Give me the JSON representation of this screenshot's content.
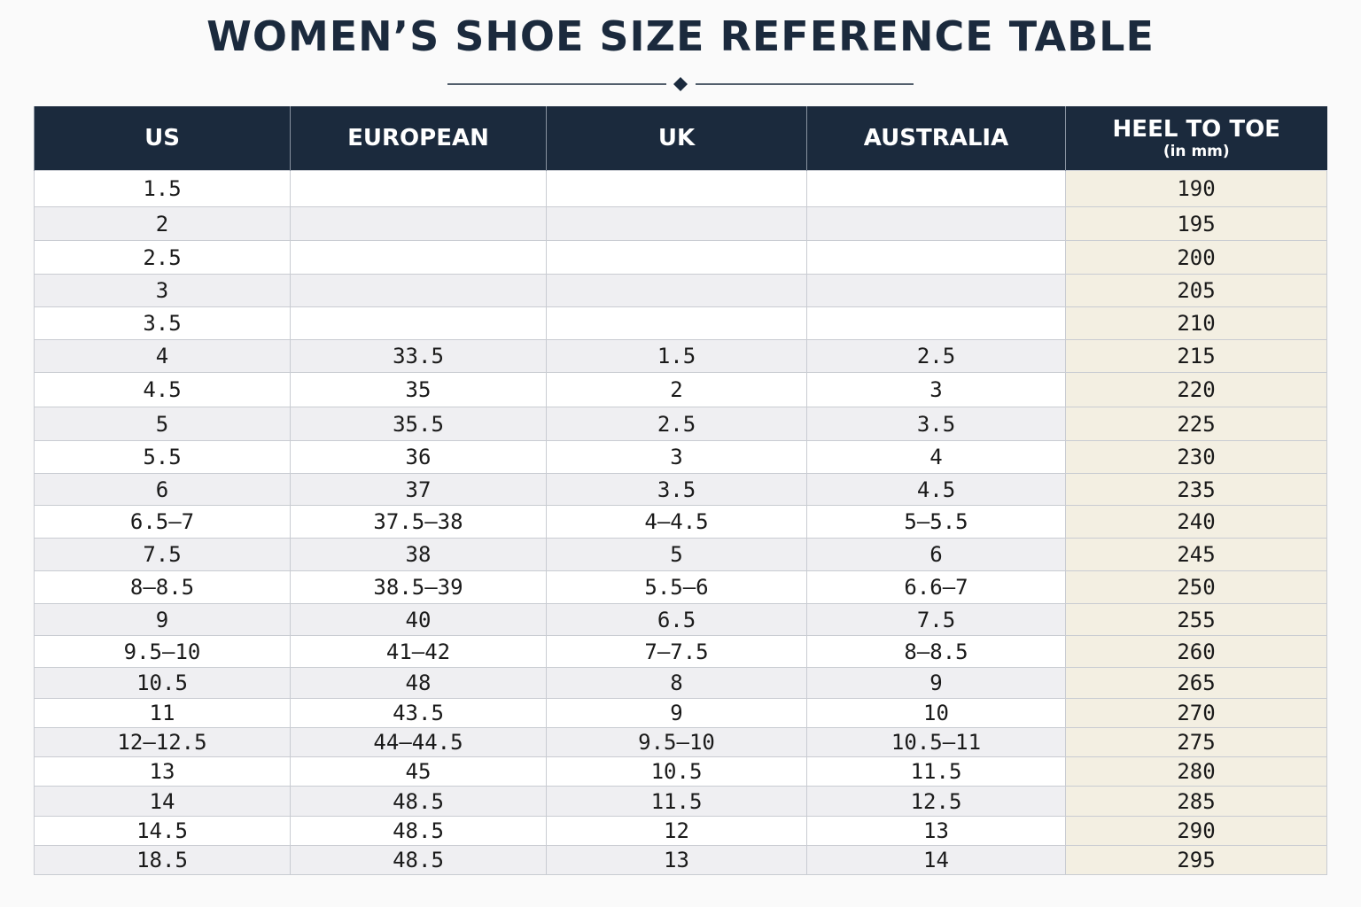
{
  "title": "WOMEN’S SHOE SIZE REFERENCE TABLE",
  "table": {
    "columns": [
      "US",
      "EUROPEAN",
      "UK",
      "AUSTRALIA",
      "HEEL TO TOE"
    ],
    "heel_to_toe_unit": "(in mm)",
    "rows": [
      [
        "1.5",
        null,
        null,
        null,
        "190"
      ],
      [
        "2",
        null,
        null,
        null,
        "195"
      ],
      [
        "2.5",
        null,
        null,
        null,
        "200"
      ],
      [
        "3",
        null,
        null,
        null,
        "205"
      ],
      [
        "3.5",
        null,
        null,
        null,
        "210"
      ],
      [
        "4",
        "33.5",
        "1.5",
        "2.5",
        "215"
      ],
      [
        "4.5",
        "35",
        "2",
        "3",
        "220"
      ],
      [
        "5",
        "35.5",
        "2.5",
        "3.5",
        "225"
      ],
      [
        "5.5",
        "36",
        "3",
        "4",
        "230"
      ],
      [
        "6",
        "37",
        "3.5",
        "4.5",
        "235"
      ],
      [
        "6.5–7",
        "37.5–38",
        "4–4.5",
        "5–5.5",
        "240"
      ],
      [
        "7.5",
        "38",
        "5",
        "6",
        "245"
      ],
      [
        "8–8.5",
        "38.5–39",
        "5.5–6",
        "6.6–7",
        "250"
      ],
      [
        "9",
        "40",
        "6.5",
        "7.5",
        "255"
      ],
      [
        "9.5–10",
        "41–42",
        "7–7.5",
        "8–8.5",
        "260"
      ],
      [
        "10.5",
        "48",
        "8",
        "9",
        "265"
      ],
      [
        "11",
        "43.5",
        "9",
        "10",
        "270"
      ],
      [
        "12–12.5",
        "44–44.5",
        "9.5–10",
        "10.5–11",
        "275"
      ],
      [
        "13",
        "45",
        "10.5",
        "11.5",
        "280"
      ],
      [
        "14",
        "48.5",
        "11.5",
        "12.5",
        "285"
      ],
      [
        "14.5",
        "48.5",
        "12",
        "13",
        "290"
      ],
      [
        "18.5",
        "48.5",
        "13",
        "14",
        "295"
      ]
    ]
  }
}
